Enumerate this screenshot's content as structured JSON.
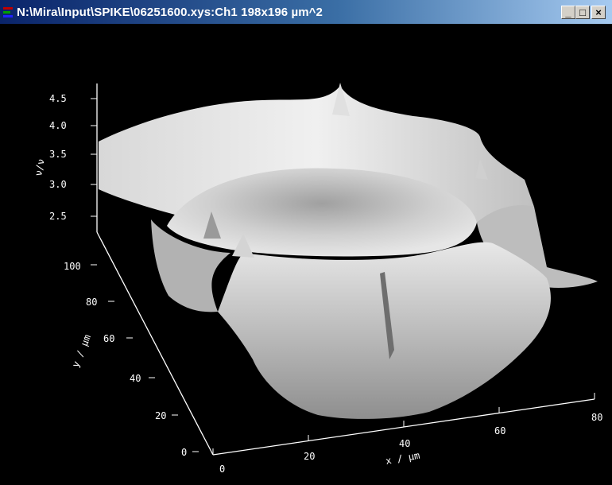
{
  "window": {
    "title": "N:\\Mira\\Input\\SPIKE\\06251600.xys:Ch1 198x196 µm^2",
    "buttons": {
      "minimize": "_",
      "maximize": "□",
      "close": "×"
    },
    "title_gradient": [
      "#0a246a",
      "#a6caf0"
    ]
  },
  "plot": {
    "background": "#000000",
    "surface_color": "#c8c8c8",
    "axis_color": "#ffffff",
    "z_axis": {
      "label": "ν/ν",
      "ticks": [
        "2.5",
        "3.0",
        "3.5",
        "4.0",
        "4.5"
      ]
    },
    "y_axis": {
      "label": "y / µm",
      "ticks": [
        "0",
        "20",
        "40",
        "60",
        "80",
        "100"
      ]
    },
    "x_axis": {
      "label": "x / µm",
      "ticks": [
        "0",
        "20",
        "40",
        "60",
        "80"
      ]
    }
  }
}
